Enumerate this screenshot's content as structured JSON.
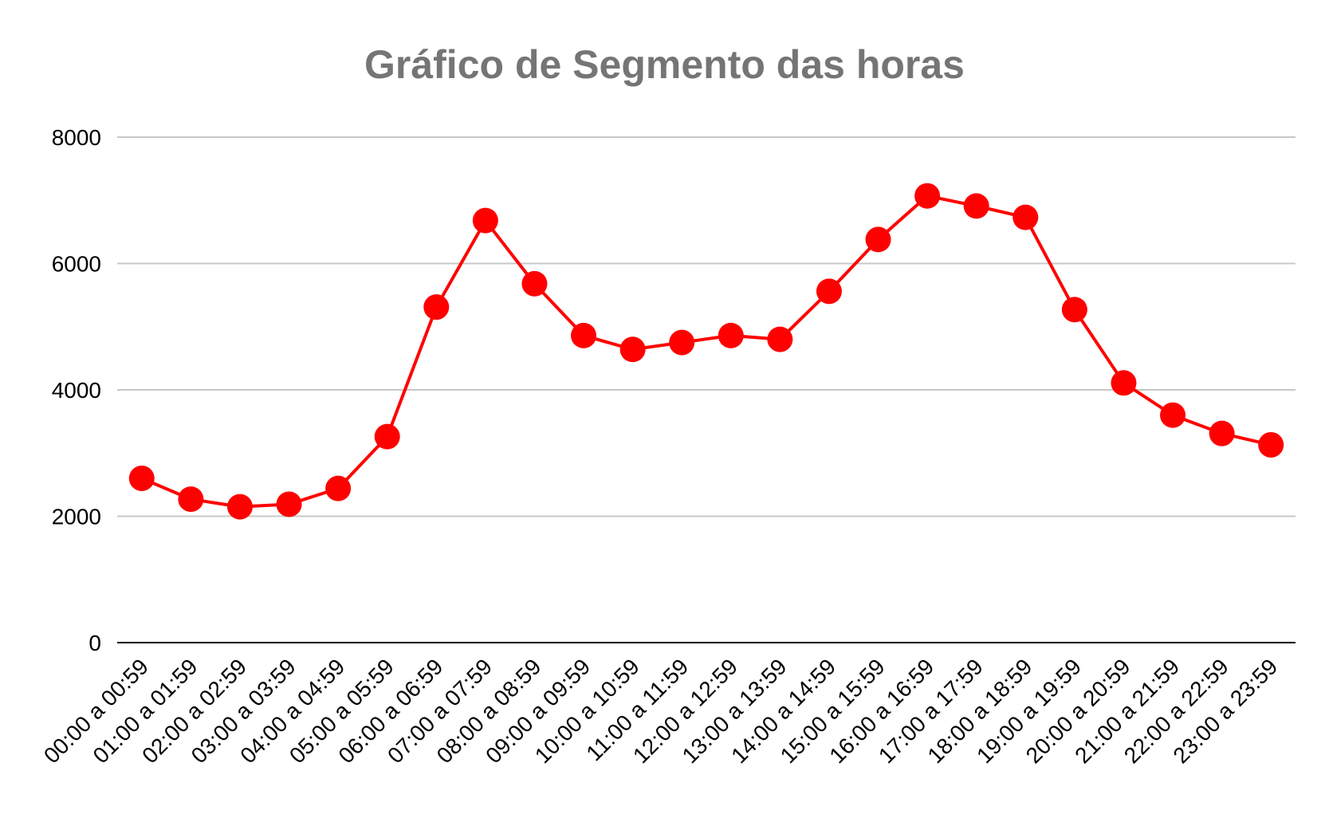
{
  "chart_data": {
    "type": "line",
    "title": "Gráfico de Segmento das horas",
    "xlabel": "",
    "ylabel": "",
    "ylim": [
      0,
      8000
    ],
    "yticks": [
      "0",
      "2000",
      "4000",
      "6000",
      "8000"
    ],
    "grid": true,
    "legend": "none",
    "categories": [
      "00:00 a 00:59",
      "01:00 a 01:59",
      "02:00 a 02:59",
      "03:00 a 03:59",
      "04:00 a 04:59",
      "05:00 a 05:59",
      "06:00 a 06:59",
      "07:00 a 07:59",
      "08:00 a 08:59",
      "09:00 a 09:59",
      "10:00 a 10:59",
      "11:00 a 11:59",
      "12:00 a 12:59",
      "13:00 a 13:59",
      "14:00 a 14:59",
      "15:00 a 15:59",
      "16:00 a 16:59",
      "17:00 a 17:59",
      "18:00 a 18:59",
      "19:00 a 19:59",
      "20:00 a 20:59",
      "21:00 a 21:59",
      "22:00 a 22:59",
      "23:00 a 23:59"
    ],
    "series": [
      {
        "values": [
          2600,
          2270,
          2150,
          2190,
          2440,
          3260,
          5310,
          6680,
          5680,
          4860,
          4640,
          4750,
          4860,
          4800,
          5560,
          6380,
          7070,
          6910,
          6730,
          5270,
          4110,
          3600,
          3310,
          3130
        ],
        "color": "#ff0000"
      }
    ],
    "colors": {
      "line": "#ff0000",
      "grid": "#c8c8c8",
      "axis": "#000000",
      "title": "#757575"
    }
  }
}
